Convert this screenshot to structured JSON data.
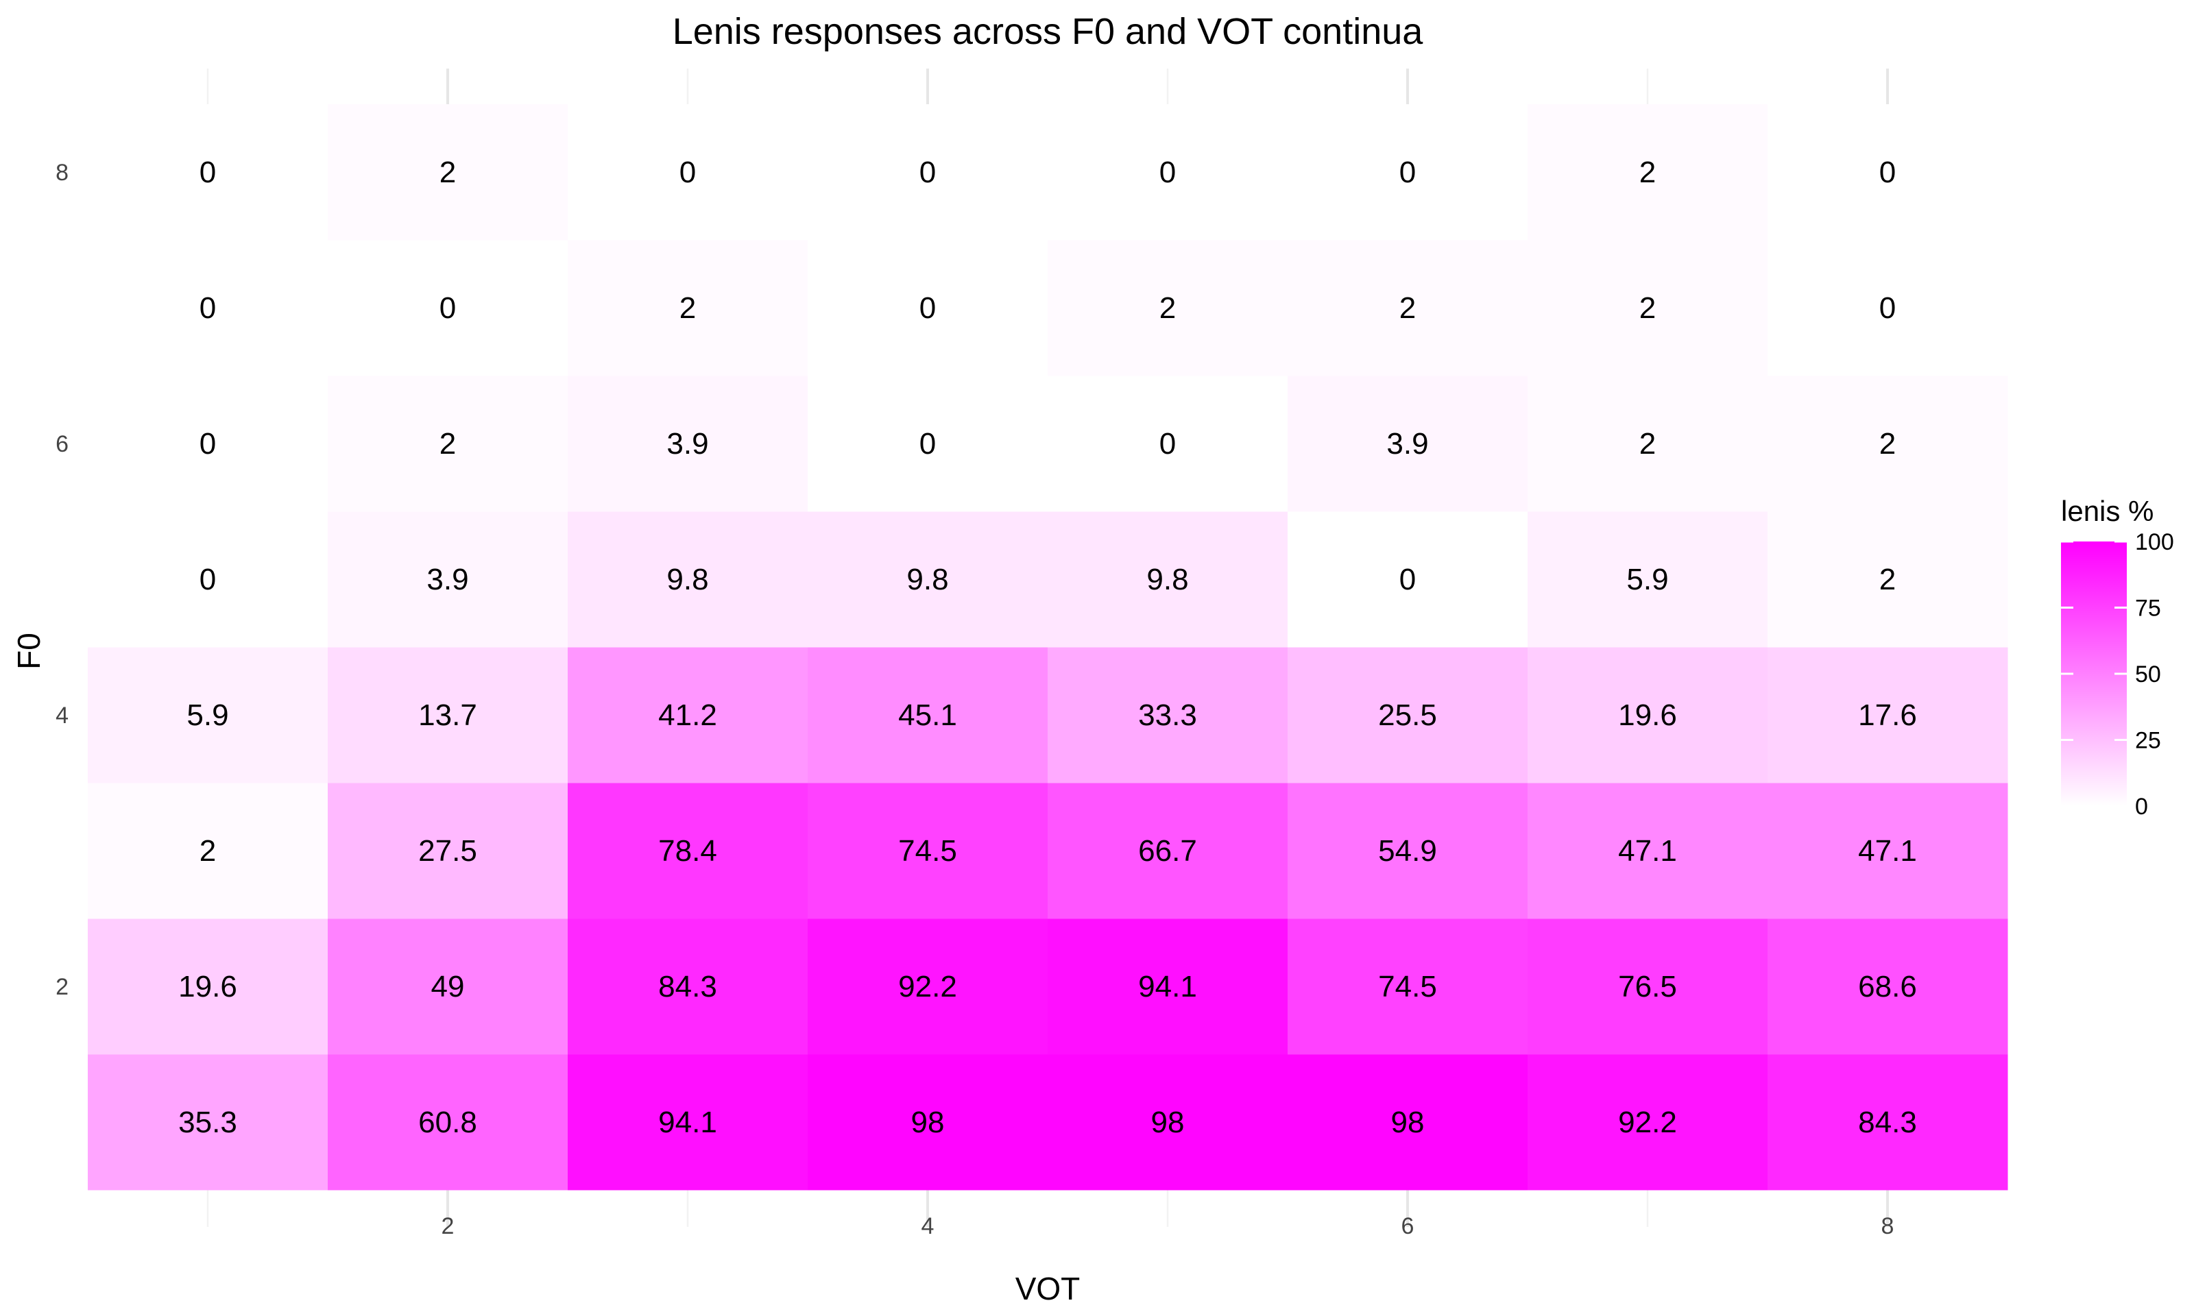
{
  "chart_data": {
    "type": "heatmap",
    "title": "Lenis responses across F0 and VOT continua",
    "xlabel": "VOT",
    "ylabel": "F0",
    "x": [
      1,
      2,
      3,
      4,
      5,
      6,
      7,
      8
    ],
    "y": [
      1,
      2,
      3,
      4,
      5,
      6,
      7,
      8
    ],
    "x_ticks": [
      2,
      4,
      6,
      8
    ],
    "y_ticks": [
      2,
      4,
      6,
      8
    ],
    "xlim": [
      0.5,
      8.5
    ],
    "ylim": [
      0.5,
      8.5
    ],
    "grid": true,
    "legend": {
      "title": "lenis %",
      "placement": "right",
      "ticks": [
        0,
        25,
        50,
        75,
        100
      ],
      "range": [
        0,
        100
      ]
    },
    "color_low": "#ffffff",
    "color_high": "#ff00ff",
    "rows": [
      {
        "f0": 1,
        "values": [
          35.3,
          60.8,
          94.1,
          98,
          98,
          98,
          92.2,
          84.3
        ]
      },
      {
        "f0": 2,
        "values": [
          19.6,
          49,
          84.3,
          92.2,
          94.1,
          74.5,
          76.5,
          68.6
        ]
      },
      {
        "f0": 3,
        "values": [
          2,
          27.5,
          78.4,
          74.5,
          66.7,
          54.9,
          47.1,
          47.1
        ]
      },
      {
        "f0": 4,
        "values": [
          5.9,
          13.7,
          41.2,
          45.1,
          33.3,
          25.5,
          19.6,
          17.6
        ]
      },
      {
        "f0": 5,
        "values": [
          0,
          3.9,
          9.8,
          9.8,
          9.8,
          0,
          5.9,
          2
        ]
      },
      {
        "f0": 6,
        "values": [
          0,
          2,
          3.9,
          0,
          0,
          3.9,
          2,
          2
        ]
      },
      {
        "f0": 7,
        "values": [
          0,
          0,
          2,
          0,
          2,
          2,
          2,
          0
        ]
      },
      {
        "f0": 8,
        "values": [
          0,
          2,
          0,
          0,
          0,
          0,
          2,
          0
        ]
      }
    ]
  }
}
